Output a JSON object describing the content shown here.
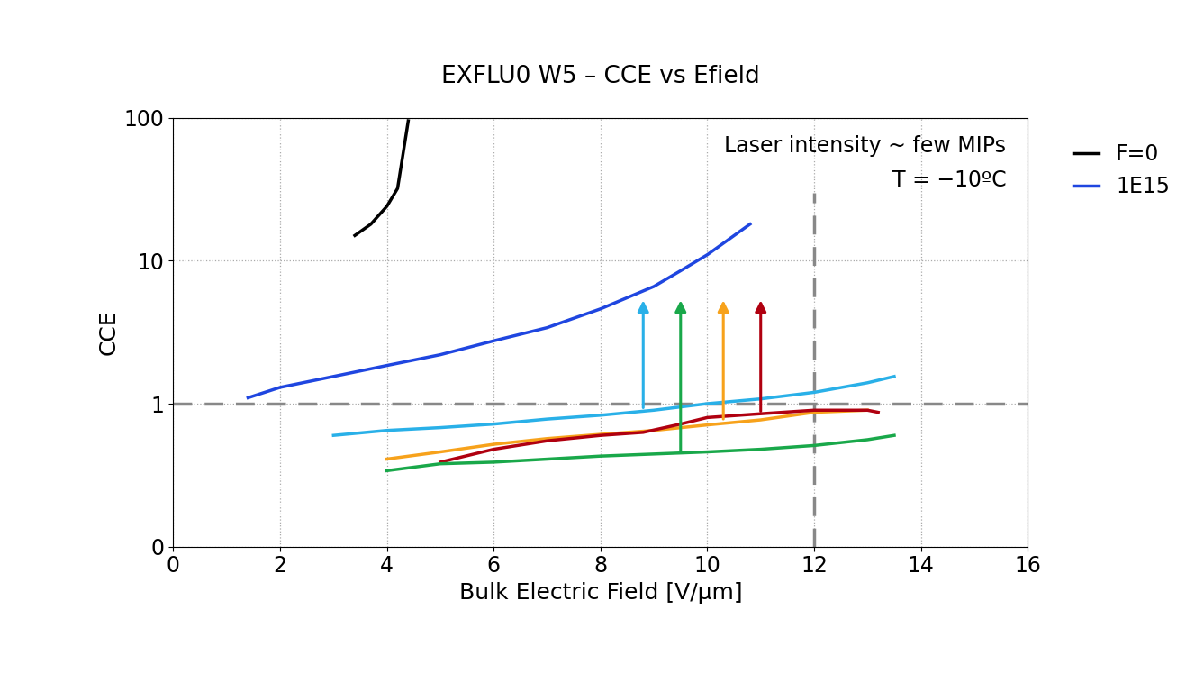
{
  "chart_data": {
    "type": "line",
    "title": "EXFLU0 W5 – CCE vs Efield",
    "x_label": "Bulk Electric Field [V/μm]",
    "y_label": "CCE",
    "log": "y",
    "grid": true,
    "legend": "upper right",
    "xlim": [
      0,
      16
    ],
    "xticks": [
      0,
      2,
      4,
      6,
      8,
      10,
      12,
      14,
      16
    ],
    "ylim": [
      0.1,
      100
    ],
    "yticks": [
      {
        "value": 0.1,
        "label": "0"
      },
      1,
      10,
      100
    ],
    "annotations": [
      "Laser intensity ~ few MIPs",
      "T = −10ºC"
    ],
    "reference_lines": [
      {
        "axis": "y",
        "value": 1
      },
      {
        "axis": "x",
        "value": 12,
        "to": 30
      }
    ],
    "arrows": [
      {
        "x": 8.8,
        "from": 0.9,
        "to": 5.5,
        "color": "#29b0e8"
      },
      {
        "x": 9.5,
        "from": 0.45,
        "to": 5.5,
        "color": "#19a84a"
      },
      {
        "x": 10.3,
        "from": 0.75,
        "to": 5.5,
        "color": "#f7a21b"
      },
      {
        "x": 11.0,
        "from": 0.85,
        "to": 5.5,
        "color": "#b00010"
      }
    ],
    "series": [
      {
        "name": "F=0",
        "color": "#000000",
        "x": [
          3.4,
          3.7,
          4.0,
          4.2,
          4.3,
          4.4
        ],
        "values": [
          15,
          18,
          24,
          32,
          55,
          95
        ]
      },
      {
        "name": "1E15",
        "color": "#1f46e0",
        "x": [
          1.4,
          2,
          3,
          4,
          5,
          6,
          7,
          8,
          9,
          9.5,
          10,
          10.8
        ],
        "values": [
          1.1,
          1.3,
          1.55,
          1.85,
          2.2,
          2.75,
          3.4,
          4.6,
          6.6,
          8.5,
          11,
          18
        ]
      },
      {
        "color": "#29b0e8",
        "x": [
          3,
          4,
          5,
          6,
          7,
          8,
          9,
          10,
          11,
          12,
          13,
          13.5
        ],
        "values": [
          0.6,
          0.65,
          0.68,
          0.72,
          0.78,
          0.83,
          0.9,
          1.0,
          1.08,
          1.2,
          1.4,
          1.55
        ]
      },
      {
        "color": "#f7a21b",
        "x": [
          4,
          5,
          6,
          7,
          8,
          9,
          10,
          11,
          12,
          13
        ],
        "values": [
          0.41,
          0.46,
          0.52,
          0.57,
          0.61,
          0.65,
          0.71,
          0.77,
          0.87,
          0.9
        ]
      },
      {
        "color": "#b00010",
        "x": [
          5,
          6,
          7,
          8,
          8.8,
          9.5,
          10,
          11,
          12,
          13,
          13.2
        ],
        "values": [
          0.39,
          0.48,
          0.55,
          0.6,
          0.63,
          0.72,
          0.8,
          0.85,
          0.9,
          0.9,
          0.87
        ]
      },
      {
        "color": "#19a84a",
        "x": [
          4,
          5,
          6,
          8,
          10,
          11,
          12,
          13,
          13.5
        ],
        "values": [
          0.34,
          0.38,
          0.39,
          0.43,
          0.46,
          0.48,
          0.51,
          0.56,
          0.6
        ]
      }
    ]
  }
}
